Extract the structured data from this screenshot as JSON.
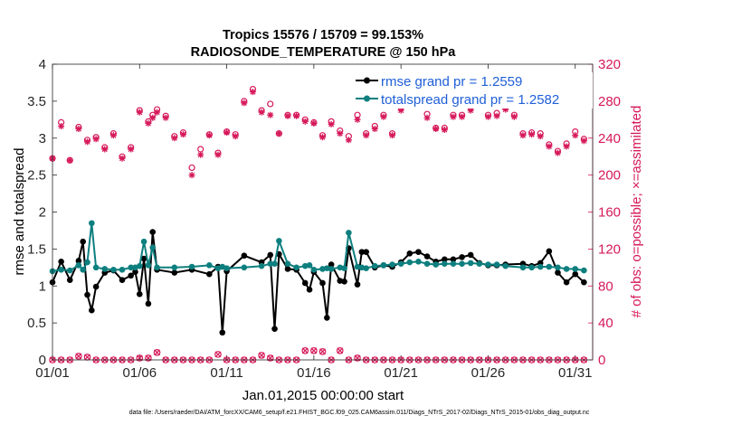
{
  "chart_data": {
    "type": "line",
    "title": "Tropics 15576 / 15709 = 99.153%",
    "subtitle": "RADIOSONDE_TEMPERATURE @ 150 hPa",
    "xlabel": "Jan.01,2015 00:00:00 start",
    "ylabel_left": "rmse and totalspread",
    "ylabel_right": "# of obs: o=possible; ×=assimilated",
    "xlim": [
      1,
      32
    ],
    "ylim_left": [
      0,
      4
    ],
    "ylim_right": [
      0,
      320
    ],
    "x_tick_values": [
      1,
      6,
      11,
      16,
      21,
      26,
      31
    ],
    "x_tick_labels": [
      "01/01",
      "01/06",
      "01/11",
      "01/16",
      "01/21",
      "01/26",
      "01/31"
    ],
    "y_left_ticks": [
      "0",
      "0.5",
      "1",
      "1.5",
      "2",
      "2.5",
      "3",
      "3.5",
      "4"
    ],
    "y_right_ticks": [
      "0",
      "40",
      "80",
      "120",
      "160",
      "200",
      "240",
      "280",
      "320"
    ],
    "colors": {
      "rmse": "#000000",
      "spread": "#0e7f7f",
      "obs": "#d6185a",
      "legend_text": "#1f5fd8"
    },
    "legend": [
      {
        "label": "rmse grand pr = 1.2559"
      },
      {
        "label": "totalspread grand pr = 1.2582"
      }
    ],
    "series": [
      {
        "name": "rmse",
        "x": [
          1.0,
          1.5,
          2.0,
          2.5,
          2.75,
          3.0,
          3.25,
          3.5,
          4.0,
          4.5,
          5.0,
          5.5,
          5.75,
          6.0,
          6.25,
          6.5,
          6.75,
          7.0,
          8.0,
          9.0,
          10.0,
          10.5,
          10.75,
          11.0,
          12.0,
          13.0,
          13.5,
          13.75,
          14.0,
          14.5,
          15.0,
          15.5,
          15.75,
          16.0,
          16.5,
          16.75,
          17.0,
          17.5,
          17.75,
          18.0,
          18.5,
          18.75,
          19.0,
          19.5,
          20.0,
          20.5,
          21.0,
          21.5,
          22.0,
          22.5,
          23.0,
          23.5,
          24.0,
          24.5,
          25.0,
          25.5,
          26.0,
          26.5,
          27.0,
          28.0,
          28.5,
          29.0,
          29.5,
          30.0,
          30.5,
          31.0,
          31.5
        ],
        "values": [
          1.05,
          1.33,
          1.08,
          1.34,
          1.6,
          0.88,
          0.67,
          0.99,
          1.18,
          1.21,
          1.08,
          1.14,
          1.19,
          0.89,
          1.37,
          0.76,
          1.73,
          1.22,
          1.18,
          1.22,
          1.16,
          1.26,
          0.37,
          1.2,
          1.41,
          1.32,
          1.42,
          0.42,
          1.43,
          1.23,
          1.22,
          1.04,
          0.95,
          1.19,
          1.04,
          0.57,
          1.29,
          1.07,
          1.06,
          1.51,
          1.02,
          1.46,
          1.46,
          1.25,
          1.28,
          1.26,
          1.32,
          1.44,
          1.46,
          1.4,
          1.33,
          1.36,
          1.36,
          1.39,
          1.42,
          1.31,
          1.28,
          1.28,
          1.29,
          1.3,
          1.27,
          1.31,
          1.47,
          1.18,
          1.05,
          1.16,
          1.05
        ]
      },
      {
        "name": "totalspread",
        "x": [
          1.0,
          1.5,
          2.0,
          2.5,
          2.75,
          3.0,
          3.25,
          3.5,
          4.0,
          4.5,
          5.0,
          5.5,
          5.75,
          6.0,
          6.25,
          6.5,
          6.75,
          7.0,
          8.0,
          9.0,
          10.0,
          10.5,
          10.75,
          11.0,
          12.0,
          13.0,
          13.5,
          13.75,
          14.0,
          14.5,
          15.0,
          15.5,
          15.75,
          16.0,
          16.5,
          16.75,
          17.0,
          17.5,
          17.75,
          18.0,
          18.5,
          18.75,
          19.0,
          19.5,
          20.0,
          20.5,
          21.0,
          21.5,
          22.0,
          22.5,
          23.0,
          23.5,
          24.0,
          24.5,
          25.0,
          25.5,
          26.0,
          26.5,
          27.0,
          28.0,
          28.5,
          29.0,
          29.5,
          30.0,
          30.5,
          31.0,
          31.5
        ],
        "values": [
          1.2,
          1.22,
          1.21,
          1.28,
          1.22,
          1.32,
          1.85,
          1.25,
          1.23,
          1.22,
          1.22,
          1.25,
          1.25,
          1.27,
          1.6,
          1.28,
          1.52,
          1.25,
          1.25,
          1.26,
          1.28,
          1.24,
          1.26,
          1.24,
          1.25,
          1.27,
          1.3,
          1.3,
          1.61,
          1.3,
          1.25,
          1.27,
          1.28,
          1.22,
          1.23,
          1.24,
          1.23,
          1.25,
          1.24,
          1.72,
          1.26,
          1.25,
          1.24,
          1.27,
          1.28,
          1.29,
          1.3,
          1.32,
          1.33,
          1.3,
          1.29,
          1.3,
          1.3,
          1.3,
          1.31,
          1.3,
          1.29,
          1.29,
          1.27,
          1.25,
          1.25,
          1.26,
          1.26,
          1.25,
          1.23,
          1.23,
          1.21
        ]
      },
      {
        "name": "obs_possible",
        "x": [
          1.0,
          1.5,
          2.0,
          2.5,
          3.0,
          3.5,
          4.0,
          4.5,
          5.0,
          5.5,
          6.0,
          6.5,
          6.75,
          7.0,
          7.5,
          8.0,
          8.5,
          9.0,
          9.5,
          10.0,
          10.5,
          11.0,
          11.5,
          12.0,
          12.5,
          13.0,
          13.5,
          14.0,
          14.5,
          15.0,
          15.5,
          16.0,
          16.5,
          17.0,
          17.5,
          18.0,
          18.5,
          19.0,
          19.5,
          20.0,
          20.5,
          21.0,
          21.5,
          22.0,
          22.5,
          23.0,
          23.5,
          24.0,
          24.5,
          25.0,
          25.5,
          26.0,
          26.5,
          27.0,
          27.5,
          28.0,
          28.5,
          29.0,
          29.5,
          30.0,
          30.5,
          31.0,
          31.5
        ],
        "values": [
          218,
          257,
          216,
          252,
          238,
          241,
          230,
          245,
          220,
          230,
          270,
          258,
          265,
          271,
          264,
          242,
          246,
          208,
          228,
          244,
          224,
          247,
          244,
          280,
          293,
          270,
          277,
          245,
          265,
          265,
          260,
          257,
          243,
          258,
          248,
          242,
          265,
          245,
          253,
          265,
          245,
          273,
          289,
          284,
          266,
          251,
          251,
          265,
          265,
          273,
          293,
          265,
          267,
          273,
          265,
          245,
          246,
          245,
          233,
          226,
          234,
          247,
          239
        ]
      },
      {
        "name": "obs_assimilated",
        "x": [
          1.0,
          1.5,
          2.0,
          2.5,
          3.0,
          3.5,
          4.0,
          4.5,
          5.0,
          5.5,
          6.0,
          6.5,
          6.75,
          7.0,
          7.5,
          8.0,
          8.5,
          9.0,
          9.5,
          10.0,
          10.5,
          11.0,
          11.5,
          12.0,
          12.5,
          13.0,
          13.5,
          14.0,
          14.5,
          15.0,
          15.5,
          16.0,
          16.5,
          17.0,
          17.5,
          18.0,
          18.5,
          19.0,
          19.5,
          20.0,
          20.5,
          21.0,
          21.5,
          22.0,
          22.5,
          23.0,
          23.5,
          24.0,
          24.5,
          25.0,
          25.5,
          26.0,
          26.5,
          27.0,
          27.5,
          28.0,
          28.5,
          29.0,
          29.5,
          30.0,
          30.5,
          31.0,
          31.5
        ],
        "values": [
          218,
          253,
          216,
          250,
          236,
          239,
          228,
          243,
          218,
          228,
          268,
          256,
          262,
          268,
          262,
          240,
          244,
          200,
          222,
          243,
          222,
          246,
          242,
          278,
          290,
          268,
          265,
          245,
          264,
          264,
          258,
          256,
          241,
          255,
          245,
          238,
          260,
          243,
          250,
          263,
          243,
          270,
          285,
          282,
          262,
          250,
          249,
          263,
          263,
          270,
          290,
          263,
          264,
          271,
          263,
          243,
          244,
          242,
          231,
          224,
          231,
          243,
          237
        ]
      },
      {
        "name": "obs_rejected_possible",
        "x": [
          1.0,
          1.5,
          2.0,
          2.5,
          3.0,
          3.5,
          4.0,
          4.5,
          5.0,
          5.5,
          6.0,
          6.5,
          7.0,
          7.5,
          8.0,
          8.5,
          9.0,
          9.5,
          10.0,
          10.5,
          11.0,
          11.5,
          12.0,
          12.5,
          13.0,
          13.5,
          14.0,
          14.5,
          15.0,
          15.5,
          16.0,
          16.5,
          17.0,
          17.5,
          18.0,
          18.5,
          19.0,
          19.5,
          20.0,
          20.5,
          21.0,
          21.5,
          22.0,
          22.5,
          23.0,
          23.5,
          24.0,
          24.5,
          25.0,
          25.5,
          26.0,
          26.5,
          27.0,
          27.5,
          28.0,
          28.5,
          29.0,
          29.5,
          30.0,
          30.5,
          31.0,
          31.5
        ],
        "values": [
          0,
          0,
          0,
          4,
          3,
          0,
          0,
          0,
          0,
          0,
          2,
          2,
          8,
          0,
          0,
          0,
          0,
          0,
          0,
          6,
          0,
          0,
          0,
          0,
          5,
          2,
          0,
          0,
          0,
          10,
          10,
          9,
          0,
          10,
          0,
          2,
          0,
          0,
          0,
          0,
          0,
          0,
          0,
          0,
          0,
          0,
          0,
          0,
          0,
          0,
          0,
          0,
          0,
          0,
          0,
          0,
          0,
          0,
          0,
          0,
          0,
          0
        ]
      }
    ],
    "footer": "data file: /Users/raeder/DAI/ATM_forcXX/CAM6_setup/f.e21.FHIST_BGC.f09_025.CAM6assim.011/Diags_NTrS_2017-02/Diags_NTrS_2015-01/obs_diag_output.nc"
  }
}
